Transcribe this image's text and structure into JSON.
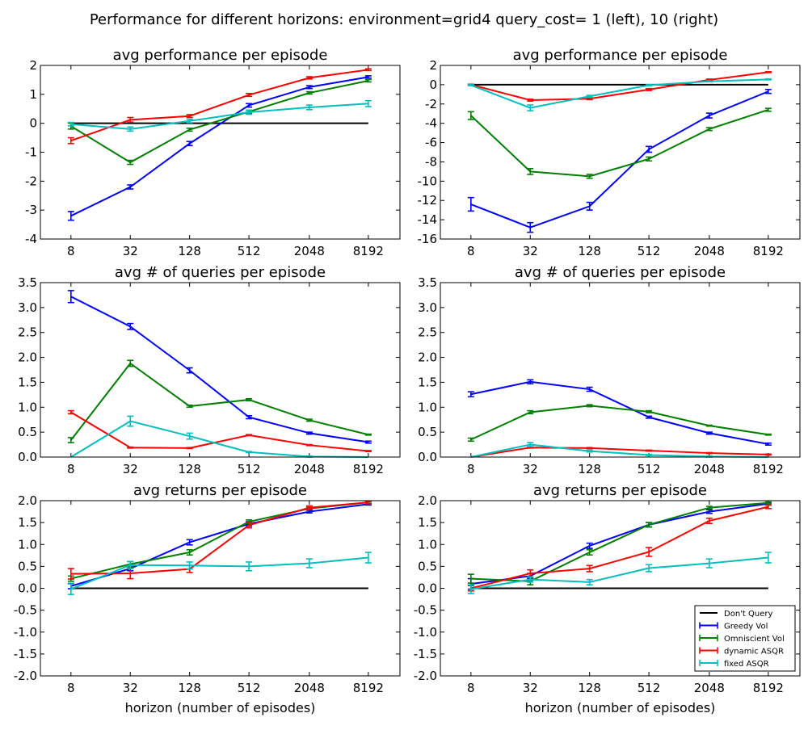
{
  "figure_title": "Performance for different horizons:  environment=grid4  query_cost= 1 (left), 10 (right)",
  "legend": {
    "entries": [
      {
        "label": "Don't Query",
        "color": "#000000"
      },
      {
        "label": "Greedy Vol",
        "color": "#0000ff"
      },
      {
        "label": "Omniscient Vol",
        "color": "#008000"
      },
      {
        "label": "dynamic ASQR",
        "color": "#ff0000"
      },
      {
        "label": "fixed ASQR",
        "color": "#00bfbf"
      }
    ]
  },
  "chart_data": [
    {
      "type": "line",
      "title": "avg performance per episode",
      "xlabel": "",
      "ylabel": "",
      "categories": [
        "8",
        "32",
        "128",
        "512",
        "2048",
        "8192"
      ],
      "ylim": [
        -4,
        2
      ],
      "yticks": [
        -4,
        -3,
        -2,
        -1,
        0,
        1,
        2
      ],
      "series": [
        {
          "name": "Don't Query",
          "color": "#000000",
          "values": [
            0,
            0,
            0,
            0,
            0,
            0
          ],
          "err": [
            0,
            0,
            0,
            0,
            0,
            0
          ]
        },
        {
          "name": "Greedy Vol",
          "color": "#0000ff",
          "values": [
            -3.2,
            -2.2,
            -0.7,
            0.62,
            1.25,
            1.6
          ],
          "err": [
            0.15,
            0.07,
            0.07,
            0.06,
            0.05,
            0.04
          ]
        },
        {
          "name": "Omniscient Vol",
          "color": "#008000",
          "values": [
            -0.1,
            -1.35,
            -0.22,
            0.4,
            1.05,
            1.47
          ],
          "err": [
            0.1,
            0.07,
            0.05,
            0.05,
            0.04,
            0.04
          ]
        },
        {
          "name": "dynamic ASQR",
          "color": "#ff0000",
          "values": [
            -0.6,
            0.12,
            0.25,
            0.98,
            1.57,
            1.85
          ],
          "err": [
            0.1,
            0.08,
            0.05,
            0.05,
            0.04,
            0.03
          ]
        },
        {
          "name": "fixed ASQR",
          "color": "#00bfbf",
          "values": [
            -0.03,
            -0.2,
            0.08,
            0.38,
            0.55,
            0.68
          ],
          "err": [
            0.06,
            0.07,
            0.06,
            0.07,
            0.08,
            0.1
          ]
        }
      ]
    },
    {
      "type": "line",
      "title": "avg performance per episode",
      "xlabel": "",
      "ylabel": "",
      "categories": [
        "8",
        "32",
        "128",
        "512",
        "2048",
        "8192"
      ],
      "ylim": [
        -16,
        2
      ],
      "yticks": [
        -16,
        -14,
        -12,
        -10,
        -8,
        -6,
        -4,
        -2,
        0,
        2
      ],
      "series": [
        {
          "name": "Don't Query",
          "color": "#000000",
          "values": [
            0,
            0,
            0,
            0,
            0,
            0
          ],
          "err": [
            0,
            0,
            0,
            0,
            0,
            0
          ]
        },
        {
          "name": "Greedy Vol",
          "color": "#0000ff",
          "values": [
            -12.4,
            -14.8,
            -12.6,
            -6.7,
            -3.2,
            -0.7
          ],
          "err": [
            0.7,
            0.5,
            0.4,
            0.3,
            0.25,
            0.2
          ]
        },
        {
          "name": "Omniscient Vol",
          "color": "#008000",
          "values": [
            -3.2,
            -9,
            -9.5,
            -7.7,
            -4.6,
            -2.6
          ],
          "err": [
            0.4,
            0.3,
            0.2,
            0.2,
            0.15,
            0.15
          ]
        },
        {
          "name": "dynamic ASQR",
          "color": "#ff0000",
          "values": [
            0,
            -1.6,
            -1.45,
            -0.5,
            0.5,
            1.3
          ],
          "err": [
            0.05,
            0.1,
            0.1,
            0.1,
            0.08,
            0.05
          ]
        },
        {
          "name": "fixed ASQR",
          "color": "#00bfbf",
          "values": [
            -0.05,
            -2.4,
            -1.2,
            -0.05,
            0.35,
            0.55
          ],
          "err": [
            0.05,
            0.3,
            0.1,
            0.05,
            0.05,
            0.05
          ]
        }
      ]
    },
    {
      "type": "line",
      "title": "avg # of queries per episode",
      "xlabel": "",
      "ylabel": "",
      "categories": [
        "8",
        "32",
        "128",
        "512",
        "2048",
        "8192"
      ],
      "ylim": [
        0,
        3.5
      ],
      "yticks": [
        0,
        0.5,
        1,
        1.5,
        2,
        2.5,
        3,
        3.5
      ],
      "series": [
        {
          "name": "Greedy Vol",
          "color": "#0000ff",
          "values": [
            3.22,
            2.62,
            1.74,
            0.8,
            0.48,
            0.3
          ],
          "err": [
            0.12,
            0.06,
            0.05,
            0.03,
            0.02,
            0.02
          ]
        },
        {
          "name": "Omniscient Vol",
          "color": "#008000",
          "values": [
            0.34,
            1.88,
            1.02,
            1.15,
            0.74,
            0.45
          ],
          "err": [
            0.05,
            0.06,
            0.02,
            0.02,
            0.02,
            0.01
          ]
        },
        {
          "name": "dynamic ASQR",
          "color": "#ff0000",
          "values": [
            0.9,
            0.19,
            0.18,
            0.44,
            0.24,
            0.12
          ],
          "err": [
            0.03,
            0.01,
            0.01,
            0.01,
            0.01,
            0.01
          ]
        },
        {
          "name": "fixed ASQR",
          "color": "#00bfbf",
          "values": [
            0,
            0.72,
            0.42,
            0.1,
            0.01,
            0
          ],
          "err": [
            0,
            0.1,
            0.06,
            0.01,
            0.01,
            0
          ]
        }
      ]
    },
    {
      "type": "line",
      "title": "avg # of queries per episode",
      "xlabel": "",
      "ylabel": "",
      "categories": [
        "8",
        "32",
        "128",
        "512",
        "2048",
        "8192"
      ],
      "ylim": [
        0,
        3.5
      ],
      "yticks": [
        0,
        0.5,
        1,
        1.5,
        2,
        2.5,
        3,
        3.5
      ],
      "series": [
        {
          "name": "Greedy Vol",
          "color": "#0000ff",
          "values": [
            1.26,
            1.51,
            1.36,
            0.8,
            0.48,
            0.26
          ],
          "err": [
            0.05,
            0.04,
            0.04,
            0.02,
            0.02,
            0.02
          ]
        },
        {
          "name": "Omniscient Vol",
          "color": "#008000",
          "values": [
            0.35,
            0.9,
            1.03,
            0.91,
            0.63,
            0.45
          ],
          "err": [
            0.03,
            0.03,
            0.02,
            0.02,
            0.01,
            0.01
          ]
        },
        {
          "name": "dynamic ASQR",
          "color": "#ff0000",
          "values": [
            0,
            0.19,
            0.18,
            0.13,
            0.08,
            0.05
          ],
          "err": [
            0,
            0.01,
            0.01,
            0.01,
            0.01,
            0.01
          ]
        },
        {
          "name": "fixed ASQR",
          "color": "#00bfbf",
          "values": [
            0,
            0.25,
            0.12,
            0.04,
            0.01,
            0
          ],
          "err": [
            0,
            0.04,
            0.02,
            0.01,
            0.01,
            0
          ]
        }
      ]
    },
    {
      "type": "line",
      "title": "avg returns per episode",
      "xlabel": "horizon (number of episodes)",
      "ylabel": "",
      "categories": [
        "8",
        "32",
        "128",
        "512",
        "2048",
        "8192"
      ],
      "ylim": [
        -2,
        2
      ],
      "yticks": [
        -2,
        -1.5,
        -1,
        -0.5,
        0,
        0.5,
        1,
        1.5,
        2
      ],
      "series": [
        {
          "name": "Don't Query",
          "color": "#000000",
          "values": [
            0,
            0,
            0,
            0,
            0,
            0
          ],
          "err": [
            0,
            0,
            0,
            0,
            0,
            0
          ]
        },
        {
          "name": "Greedy Vol",
          "color": "#0000ff",
          "values": [
            0.05,
            0.45,
            1.05,
            1.47,
            1.75,
            1.92
          ],
          "err": [
            0.06,
            0.05,
            0.06,
            0.05,
            0.03,
            0.02
          ]
        },
        {
          "name": "Omniscient Vol",
          "color": "#008000",
          "values": [
            0.22,
            0.55,
            0.82,
            1.52,
            1.82,
            1.96
          ],
          "err": [
            0.06,
            0.06,
            0.06,
            0.04,
            0.03,
            0.02
          ]
        },
        {
          "name": "dynamic ASQR",
          "color": "#ff0000",
          "values": [
            0.33,
            0.34,
            0.44,
            1.44,
            1.84,
            1.96
          ],
          "err": [
            0.12,
            0.12,
            0.08,
            0.06,
            0.04,
            0.03
          ]
        },
        {
          "name": "fixed ASQR",
          "color": "#00bfbf",
          "values": [
            -0.02,
            0.53,
            0.52,
            0.5,
            0.57,
            0.7
          ],
          "err": [
            0.12,
            0.08,
            0.08,
            0.1,
            0.1,
            0.12
          ]
        }
      ]
    },
    {
      "type": "line",
      "title": "avg returns per episode",
      "xlabel": "horizon (number of episodes)",
      "ylabel": "",
      "categories": [
        "8",
        "32",
        "128",
        "512",
        "2048",
        "8192"
      ],
      "ylim": [
        -2,
        2
      ],
      "yticks": [
        -2,
        -1.5,
        -1,
        -0.5,
        0,
        0.5,
        1,
        1.5,
        2
      ],
      "legend": "lower right",
      "series": [
        {
          "name": "Don't Query",
          "color": "#000000",
          "values": [
            0,
            0,
            0,
            0,
            0,
            0
          ],
          "err": [
            0,
            0,
            0,
            0,
            0,
            0
          ]
        },
        {
          "name": "Greedy Vol",
          "color": "#0000ff",
          "values": [
            0.1,
            0.28,
            0.97,
            1.45,
            1.75,
            1.93
          ],
          "err": [
            0.12,
            0.06,
            0.06,
            0.05,
            0.04,
            0.03
          ]
        },
        {
          "name": "Omniscient Vol",
          "color": "#008000",
          "values": [
            0.22,
            0.16,
            0.82,
            1.45,
            1.84,
            1.95
          ],
          "err": [
            0.1,
            0.08,
            0.06,
            0.05,
            0.03,
            0.02
          ]
        },
        {
          "name": "dynamic ASQR",
          "color": "#ff0000",
          "values": [
            0,
            0.34,
            0.45,
            0.83,
            1.54,
            1.86
          ],
          "err": [
            0.06,
            0.08,
            0.07,
            0.1,
            0.06,
            0.04
          ]
        },
        {
          "name": "fixed ASQR",
          "color": "#00bfbf",
          "values": [
            -0.02,
            0.2,
            0.14,
            0.46,
            0.57,
            0.7
          ],
          "err": [
            0.1,
            0.06,
            0.06,
            0.08,
            0.1,
            0.12
          ]
        }
      ]
    }
  ]
}
